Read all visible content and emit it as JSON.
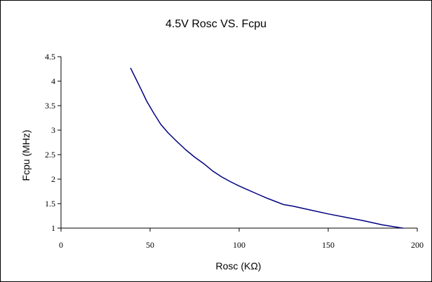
{
  "chart_data": {
    "type": "line",
    "title": "4.5V Rosc VS. Fcpu",
    "xlabel": "Rosc (KΩ)",
    "ylabel": "Fcpu (MHz)",
    "xlim": [
      0,
      200
    ],
    "ylim": [
      1,
      4.5
    ],
    "x_ticks": [
      "0",
      "50",
      "100",
      "150",
      "200"
    ],
    "y_ticks": [
      "1",
      "1.5",
      "2",
      "2.5",
      "3",
      "3.5",
      "4",
      "4.5"
    ],
    "grid": false,
    "legend": "none",
    "series": [
      {
        "color": "#000080",
        "x": [
          39,
          42,
          45,
          48,
          52,
          56,
          60,
          65,
          70,
          75,
          80,
          85,
          90,
          95,
          100,
          105,
          110,
          115,
          120,
          125,
          130,
          140,
          150,
          160,
          170,
          180,
          185,
          190,
          192
        ],
        "y": [
          4.27,
          4.05,
          3.83,
          3.6,
          3.35,
          3.12,
          2.95,
          2.77,
          2.6,
          2.45,
          2.32,
          2.17,
          2.05,
          1.95,
          1.86,
          1.78,
          1.7,
          1.62,
          1.55,
          1.48,
          1.45,
          1.37,
          1.29,
          1.22,
          1.15,
          1.07,
          1.04,
          1.01,
          1.0
        ]
      }
    ]
  }
}
